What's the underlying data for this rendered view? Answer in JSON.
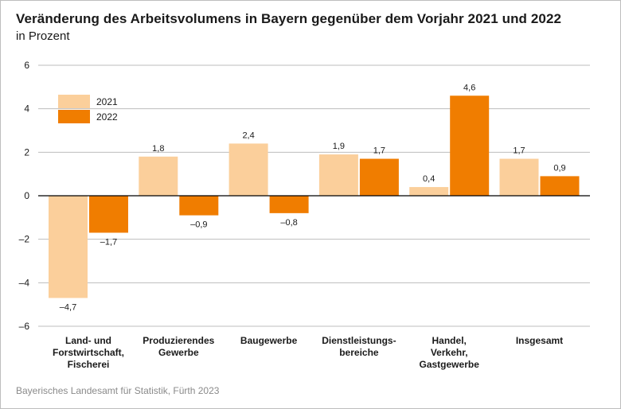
{
  "title": "Veränderung des Arbeitsvolumens in Bayern gegenüber dem Vorjahr 2021 und 2022",
  "subtitle": "in Prozent",
  "source": "Bayerisches Landesamt für Statistik, Fürth 2023",
  "colors": {
    "series2021": "#fbcf9b",
    "series2022": "#f07d00",
    "grid": "#bdbdbd",
    "axis": "#000000"
  },
  "chart_data": {
    "type": "bar",
    "categories": [
      [
        "Land- und",
        "Forstwirtschaft,",
        "Fischerei"
      ],
      [
        "Produzierendes",
        "Gewerbe"
      ],
      [
        "Baugewerbe"
      ],
      [
        "Dienstleistungs-",
        "bereiche"
      ],
      [
        "Handel,",
        "Verkehr,",
        "Gastgewerbe"
      ],
      [
        "Insgesamt"
      ]
    ],
    "series": [
      {
        "name": "2021",
        "values": [
          -4.7,
          1.8,
          2.4,
          1.9,
          0.4,
          1.7
        ],
        "labels": [
          "–4,7",
          "1,8",
          "2,4",
          "1,9",
          "0,4",
          "1,7"
        ]
      },
      {
        "name": "2022",
        "values": [
          -1.7,
          -0.9,
          -0.8,
          1.7,
          4.6,
          0.9
        ],
        "labels": [
          "–1,7",
          "–0,9",
          "–0,8",
          "1,7",
          "4,6",
          "0,9"
        ]
      }
    ],
    "yticks": [
      6,
      4,
      2,
      0,
      -2,
      -4,
      -6
    ],
    "ytick_labels": [
      "6",
      "4",
      "2",
      "0",
      "–2",
      "–4",
      "–6"
    ],
    "ylim": [
      -6,
      6
    ],
    "grid": true,
    "legend": "top-left"
  }
}
